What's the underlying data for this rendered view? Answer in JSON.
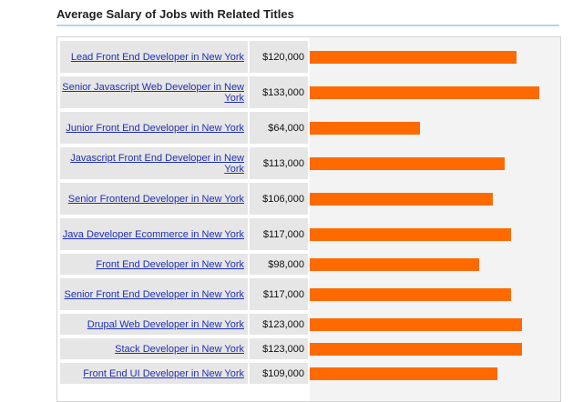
{
  "title": "Average Salary of Jobs with Related Titles",
  "colors": {
    "bar": "#ff6a00",
    "link": "#1f2fb3",
    "row_bg": "#e6e6e6",
    "rule": "#bcd2e6"
  },
  "chart_data": {
    "type": "bar",
    "orientation": "horizontal",
    "title": "Average Salary of Jobs with Related Titles",
    "categories": [
      "Lead Front End Developer in New York",
      "Senior Javascript Web Developer in New York",
      "Junior Front End Developer in New York",
      "Javascript Front End Developer in New York",
      "Senior Frontend Developer in New York",
      "Java Developer Ecommerce in New York",
      "Front End Developer in New York",
      "Senior Front End Developer in New York",
      "Drupal Web Developer in New York",
      "Stack Developer in New York",
      "Front End UI Developer in New York"
    ],
    "labels": [
      "$120,000",
      "$133,000",
      "$64,000",
      "$113,000",
      "$106,000",
      "$117,000",
      "$98,000",
      "$117,000",
      "$123,000",
      "$123,000",
      "$109,000"
    ],
    "values": [
      120000,
      133000,
      64000,
      113000,
      106000,
      117000,
      98000,
      117000,
      123000,
      123000,
      109000
    ],
    "xlim": [
      0,
      140000
    ],
    "grid": false,
    "legend": "none"
  }
}
